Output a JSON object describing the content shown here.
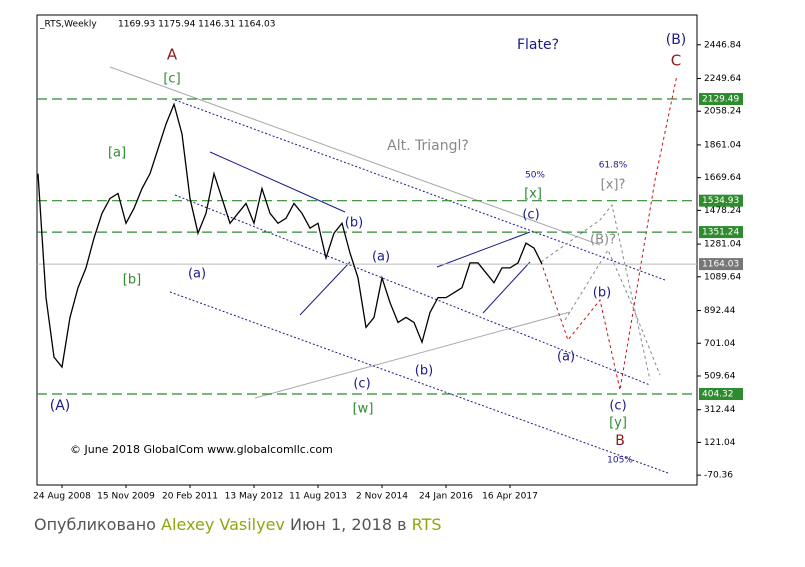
{
  "chart_data": {
    "type": "line",
    "title": "_RTS,Weekly",
    "subtitle": "1169.93 1175.94 1146.31 1164.03",
    "categories": [
      null,
      null,
      null,
      "24 Aug 2008",
      null,
      null,
      null,
      null,
      null,
      null,
      null,
      "15 Nov 2009",
      null,
      null,
      null,
      null,
      null,
      null,
      null,
      "20 Feb 2011",
      null,
      null,
      null,
      null,
      null,
      null,
      null,
      "13 May 2012",
      null,
      null,
      null,
      null,
      null,
      null,
      null,
      "11 Aug 2013",
      null,
      null,
      null,
      null,
      null,
      null,
      null,
      "2 Nov 2014",
      null,
      null,
      null,
      null,
      null,
      null,
      null,
      "24 Jan 2016",
      null,
      null,
      null,
      null,
      null,
      null,
      null,
      "16 Apr 2017",
      null,
      null,
      null,
      null
    ],
    "values": [
      1693,
      968,
      620,
      562,
      852,
      1026,
      1142,
      1316,
      1461,
      1548,
      1577,
      1403,
      1490,
      1606,
      1693,
      1838,
      1983,
      2099,
      1925,
      1548,
      1345,
      1461,
      1693,
      1548,
      1403,
      1461,
      1519,
      1403,
      1606,
      1461,
      1403,
      1432,
      1519,
      1461,
      1374,
      1403,
      1200,
      1345,
      1403,
      1229,
      1084,
      794,
      852,
      1084,
      939,
      823,
      852,
      823,
      707,
      881,
      968,
      968,
      997,
      1026,
      1171,
      1171,
      1113,
      1055,
      1142,
      1142,
      1171,
      1287,
      1258,
      1164
    ],
    "color": "#000000",
    "ylim": [
      -128,
      2621
    ],
    "yticks": [
      2446.84,
      2249.64,
      2058.24,
      1861.04,
      1669.64,
      1478.24,
      1281.04,
      1089.64,
      892.44,
      701.04,
      509.64,
      312.44,
      121.04,
      -70.36
    ],
    "levels": [
      2129.49,
      1534.93,
      1351.24,
      404.32
    ],
    "level_color": "#2e8b2e",
    "last_price": 1164.03,
    "annotations": [
      {
        "text": "A",
        "color": "#8b1a1a"
      },
      {
        "text": "[c]",
        "color": "#2e8b2e"
      },
      {
        "text": "[a]",
        "color": "#2e8b2e"
      },
      {
        "text": "[b]",
        "color": "#2e8b2e"
      },
      {
        "text": "(a)",
        "color": "#1a1a8c"
      },
      {
        "text": "(A)",
        "color": "#1a1a8c"
      },
      {
        "text": "(b)",
        "color": "#1a1a8c"
      },
      {
        "text": "(a)",
        "color": "#1a1a8c"
      },
      {
        "text": "(c)",
        "color": "#1a1a8c"
      },
      {
        "text": "[w]",
        "color": "#2e8b2e"
      },
      {
        "text": "(b)",
        "color": "#1a1a8c"
      },
      {
        "text": "(c)",
        "color": "#1a1a8c"
      },
      {
        "text": "50%",
        "color": "#1a1a8c"
      },
      {
        "text": "[x]",
        "color": "#2e8b2e"
      },
      {
        "text": "61.8%",
        "color": "#1a1a8c"
      },
      {
        "text": "[x]?",
        "color": "#888888"
      },
      {
        "text": "(B)?",
        "color": "#888888"
      },
      {
        "text": "(b)",
        "color": "#1a1a8c"
      },
      {
        "text": "(a)",
        "color": "#1a1a8c"
      },
      {
        "text": "(c)",
        "color": "#1a1a8c"
      },
      {
        "text": "[y]",
        "color": "#2e8b2e"
      },
      {
        "text": "B",
        "color": "#8b1a1a"
      },
      {
        "text": "105%",
        "color": "#1a1a8c"
      },
      {
        "text": "Flate?",
        "color": "#1a1a8c"
      },
      {
        "text": "(B)",
        "color": "#1a1a8c"
      },
      {
        "text": "C",
        "color": "#8b1a1a"
      },
      {
        "text": "Alt. Triangl?",
        "color": "#888888"
      }
    ],
    "copyright": "© June 2018 GlobalCom www.globalcomllc.com"
  },
  "footer": {
    "prefix": "Опубликовано",
    "author": "Alexey Vasilyev",
    "middle": "Июн 1, 2018 в",
    "market": "RTS"
  }
}
